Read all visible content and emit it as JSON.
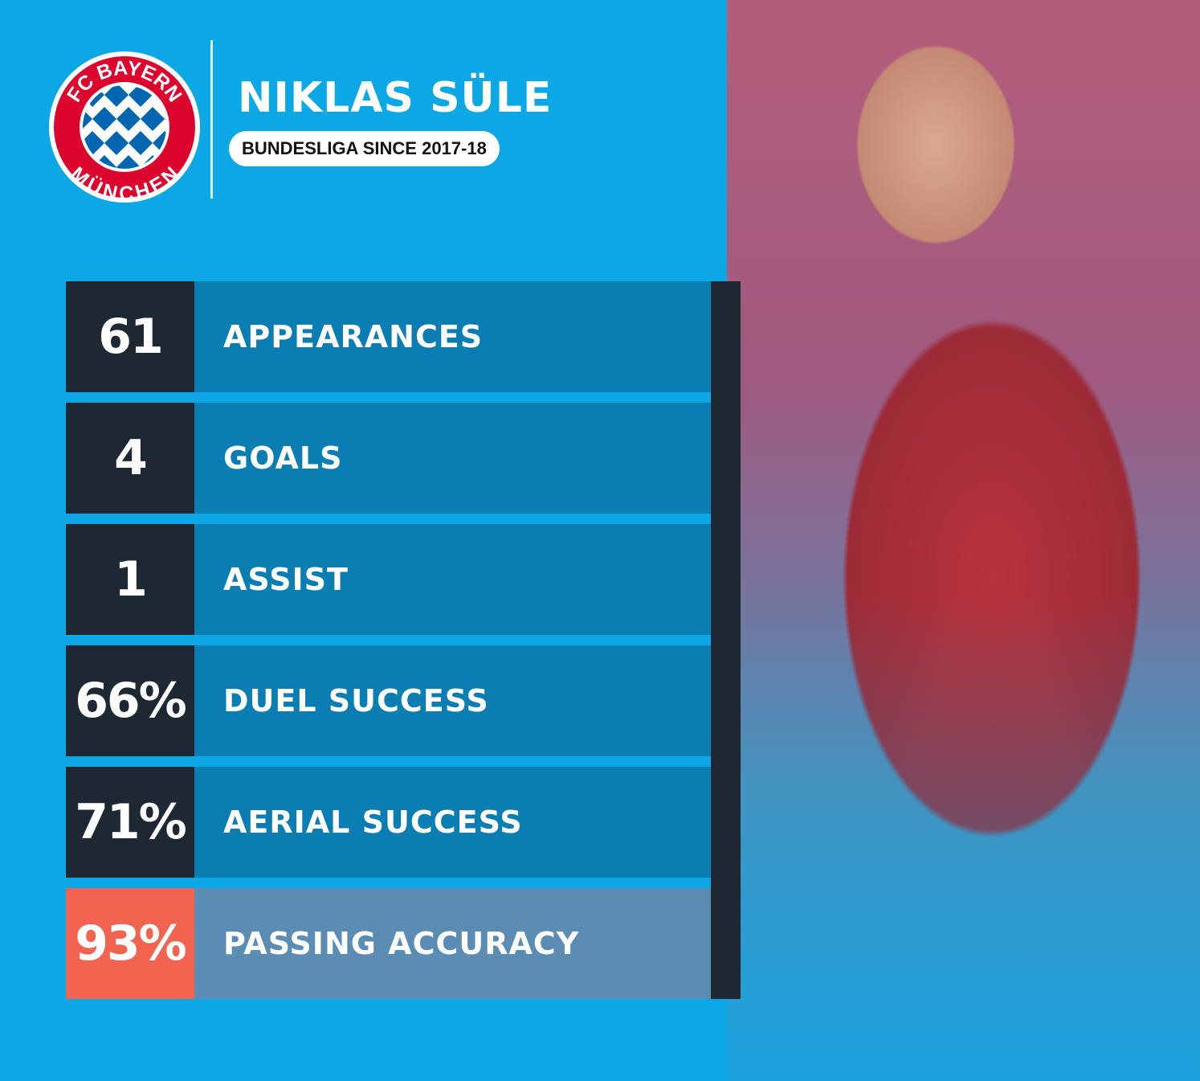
{
  "logo": {
    "text_top": "FC BAYERN",
    "text_bottom": "MÜNCHEN",
    "colors": {
      "red": "#dc052d",
      "blue": "#0066b2"
    }
  },
  "header": {
    "player_name": "NIKLAS SÜLE",
    "subtitle": "BUNDESLIGA SINCE 2017-18"
  },
  "stats": [
    {
      "value": "61",
      "label": "APPEARANCES"
    },
    {
      "value": "4",
      "label": "GOALS"
    },
    {
      "value": "1",
      "label": "ASSIST"
    },
    {
      "value": "66%",
      "label": "DUEL SUCCESS"
    },
    {
      "value": "71%",
      "label": "AERIAL SUCCESS"
    },
    {
      "value": "93%",
      "label": "PASSING ACCURACY",
      "highlight": true
    }
  ],
  "colors": {
    "background": "#0ca8e6",
    "row": "#0a7db2",
    "value_box": "#1e2833",
    "highlight_value": "#f2644f",
    "highlight_row": "#5b8db4"
  }
}
